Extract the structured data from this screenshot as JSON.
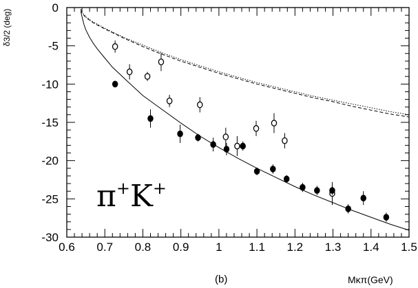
{
  "chart_data": {
    "type": "scatter",
    "ylabel": "δ3/2 (deg)",
    "xlabel": "Mκπ(GeV)",
    "subtitle": "(b)",
    "annotation": "π+K+",
    "xlim": [
      0.6,
      1.5
    ],
    "ylim": [
      -30,
      0
    ],
    "xticks": [
      "0.6",
      "0.7",
      "0.8",
      "0.9",
      "1",
      "1.1",
      "1.2",
      "1.3",
      "1.4",
      "1.5"
    ],
    "yticks": [
      "0",
      "-5",
      "-10",
      "-15",
      "-20",
      "-25",
      "-30"
    ],
    "grid": false,
    "series": [
      {
        "marker": "open-circle",
        "points": [
          {
            "x": 0.727,
            "y": -5.1,
            "err": 0.8
          },
          {
            "x": 0.765,
            "y": -8.4,
            "err": 1.0
          },
          {
            "x": 0.812,
            "y": -9.0,
            "err": 0.6
          },
          {
            "x": 0.848,
            "y": -7.1,
            "err": 1.2
          },
          {
            "x": 0.87,
            "y": -12.2,
            "err": 0.8
          },
          {
            "x": 0.95,
            "y": -12.7,
            "err": 1.0
          },
          {
            "x": 1.018,
            "y": -16.9,
            "err": 1.2
          },
          {
            "x": 1.048,
            "y": -18.1,
            "err": 1.3
          },
          {
            "x": 1.098,
            "y": -15.8,
            "err": 1.0
          },
          {
            "x": 1.145,
            "y": -15.1,
            "err": 1.3
          },
          {
            "x": 1.173,
            "y": -17.4,
            "err": 1.0
          },
          {
            "x": 1.298,
            "y": -24.3,
            "err": 1.5
          }
        ]
      },
      {
        "marker": "filled-circle",
        "points": [
          {
            "x": 0.727,
            "y": -10.0,
            "err": 0.4
          },
          {
            "x": 0.82,
            "y": -14.5,
            "err": 1.2
          },
          {
            "x": 0.898,
            "y": -16.5,
            "err": 1.2
          },
          {
            "x": 0.945,
            "y": -17.0,
            "err": 0.5
          },
          {
            "x": 0.985,
            "y": -17.9,
            "err": 0.9
          },
          {
            "x": 1.02,
            "y": -18.5,
            "err": 0.8
          },
          {
            "x": 1.063,
            "y": -18.1,
            "err": 0.6
          },
          {
            "x": 1.1,
            "y": -21.4,
            "err": 0.5
          },
          {
            "x": 1.142,
            "y": -21.1,
            "err": 0.6
          },
          {
            "x": 1.178,
            "y": -22.4,
            "err": 0.5
          },
          {
            "x": 1.22,
            "y": -23.5,
            "err": 0.6
          },
          {
            "x": 1.258,
            "y": -23.9,
            "err": 0.6
          },
          {
            "x": 1.298,
            "y": -23.9,
            "err": 0.6
          },
          {
            "x": 1.34,
            "y": -26.3,
            "err": 0.6
          },
          {
            "x": 1.38,
            "y": -24.9,
            "err": 0.9
          },
          {
            "x": 1.44,
            "y": -27.4,
            "err": 0.6
          }
        ]
      }
    ],
    "curves": [
      {
        "style": "solid",
        "points": [
          [
            0.637,
            -0.5
          ],
          [
            0.64,
            -1.2
          ],
          [
            0.645,
            -2.2
          ],
          [
            0.65,
            -2.9
          ],
          [
            0.66,
            -3.9
          ],
          [
            0.67,
            -4.7
          ],
          [
            0.68,
            -5.4
          ],
          [
            0.7,
            -6.6
          ],
          [
            0.72,
            -7.8
          ],
          [
            0.75,
            -9.2
          ],
          [
            0.8,
            -11.5
          ],
          [
            0.85,
            -13.3
          ],
          [
            0.9,
            -15.1
          ],
          [
            0.95,
            -16.8
          ],
          [
            1.0,
            -18.3
          ],
          [
            1.05,
            -19.7
          ],
          [
            1.1,
            -21.0
          ],
          [
            1.15,
            -22.2
          ],
          [
            1.2,
            -23.4
          ],
          [
            1.25,
            -24.5
          ],
          [
            1.3,
            -25.5
          ],
          [
            1.35,
            -26.5
          ],
          [
            1.4,
            -27.4
          ],
          [
            1.45,
            -28.3
          ],
          [
            1.5,
            -29.1
          ]
        ]
      },
      {
        "style": "dashed",
        "points": [
          [
            0.637,
            -0.3
          ],
          [
            0.64,
            -0.7
          ],
          [
            0.65,
            -1.3
          ],
          [
            0.67,
            -2.0
          ],
          [
            0.7,
            -2.8
          ],
          [
            0.75,
            -4.0
          ],
          [
            0.8,
            -5.1
          ],
          [
            0.85,
            -6.1
          ],
          [
            0.9,
            -7.0
          ],
          [
            0.95,
            -7.8
          ],
          [
            1.0,
            -8.6
          ],
          [
            1.05,
            -9.3
          ],
          [
            1.1,
            -10.0
          ],
          [
            1.15,
            -10.6
          ],
          [
            1.2,
            -11.2
          ],
          [
            1.25,
            -11.8
          ],
          [
            1.3,
            -12.3
          ],
          [
            1.35,
            -12.9
          ],
          [
            1.4,
            -13.4
          ],
          [
            1.45,
            -13.9
          ],
          [
            1.5,
            -14.3
          ]
        ]
      },
      {
        "style": "dotted",
        "points": [
          [
            0.637,
            -0.2
          ],
          [
            0.64,
            -0.6
          ],
          [
            0.65,
            -1.2
          ],
          [
            0.67,
            -1.9
          ],
          [
            0.7,
            -2.7
          ],
          [
            0.75,
            -3.9
          ],
          [
            0.8,
            -4.9
          ],
          [
            0.85,
            -5.9
          ],
          [
            0.9,
            -6.8
          ],
          [
            0.95,
            -7.6
          ],
          [
            1.0,
            -8.4
          ],
          [
            1.05,
            -9.1
          ],
          [
            1.1,
            -9.8
          ],
          [
            1.15,
            -10.4
          ],
          [
            1.2,
            -11.0
          ],
          [
            1.25,
            -11.6
          ],
          [
            1.3,
            -12.1
          ],
          [
            1.35,
            -12.6
          ],
          [
            1.4,
            -13.1
          ],
          [
            1.45,
            -13.6
          ],
          [
            1.5,
            -14.0
          ]
        ]
      }
    ]
  }
}
